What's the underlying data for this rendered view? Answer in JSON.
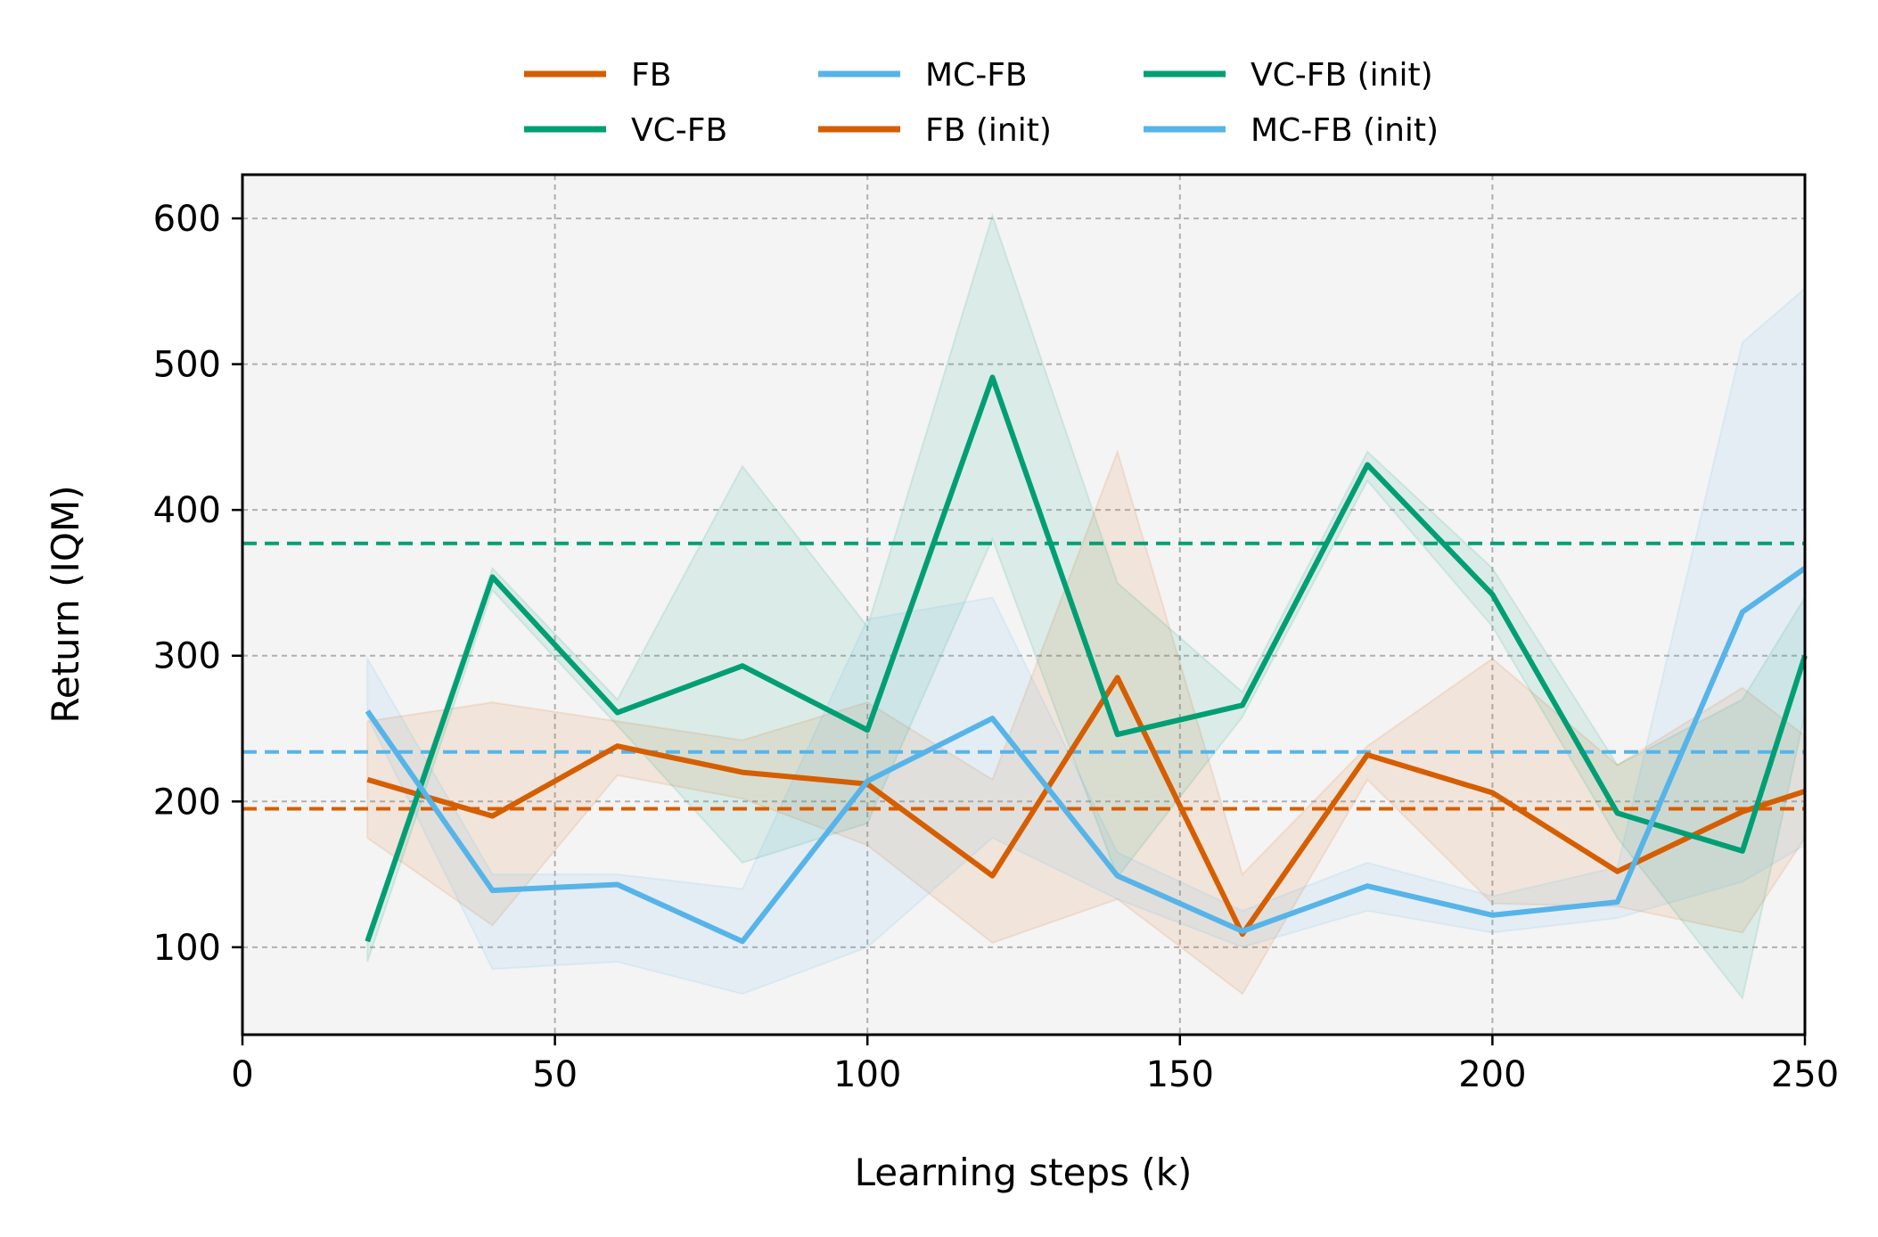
{
  "chart_data": {
    "type": "line",
    "title": "",
    "xlabel": "Learning steps (k)",
    "ylabel": "Return (IQM)",
    "xlim": [
      0,
      250
    ],
    "ylim": [
      40,
      630
    ],
    "xticks": [
      0,
      50,
      100,
      150,
      200,
      250
    ],
    "yticks": [
      100,
      200,
      300,
      400,
      500,
      600
    ],
    "grid": true,
    "legend_position": "top-center",
    "x": [
      20,
      40,
      60,
      80,
      100,
      120,
      140,
      160,
      180,
      200,
      220,
      240,
      250
    ],
    "series": [
      {
        "name": "FB",
        "color": "#d55e00",
        "style": "solid",
        "values": [
          215,
          190,
          238,
          220,
          212,
          149,
          285,
          109,
          232,
          206,
          152,
          193,
          207
        ],
        "band_upper": [
          255,
          268,
          255,
          242,
          268,
          215,
          440,
          150,
          238,
          298,
          225,
          278,
          245
        ],
        "band_lower": [
          175,
          115,
          218,
          202,
          170,
          103,
          133,
          68,
          215,
          130,
          128,
          110,
          175
        ]
      },
      {
        "name": "VC-FB",
        "color": "#009e73",
        "style": "solid",
        "values": [
          104,
          354,
          261,
          293,
          249,
          491,
          246,
          266,
          431,
          342,
          192,
          166,
          300
        ],
        "band_upper": [
          108,
          360,
          270,
          430,
          320,
          602,
          350,
          275,
          440,
          360,
          225,
          270,
          340
        ],
        "band_lower": [
          90,
          345,
          252,
          158,
          185,
          380,
          148,
          258,
          420,
          320,
          175,
          65,
          260
        ]
      },
      {
        "name": "MC-FB",
        "color": "#56b4e9",
        "style": "solid",
        "values": [
          262,
          139,
          143,
          104,
          214,
          257,
          149,
          111,
          142,
          122,
          131,
          330,
          360
        ],
        "band_upper": [
          298,
          150,
          150,
          140,
          325,
          340,
          165,
          125,
          158,
          135,
          155,
          515,
          552
        ],
        "band_lower": [
          258,
          85,
          90,
          68,
          100,
          175,
          133,
          100,
          125,
          110,
          120,
          145,
          170
        ]
      },
      {
        "name": "FB (init)",
        "color": "#d55e00",
        "style": "dashed",
        "constant": 195
      },
      {
        "name": "VC-FB (init)",
        "color": "#009e73",
        "style": "dashed",
        "constant": 377
      },
      {
        "name": "MC-FB (init)",
        "color": "#56b4e9",
        "style": "dashed",
        "constant": 234
      }
    ]
  }
}
